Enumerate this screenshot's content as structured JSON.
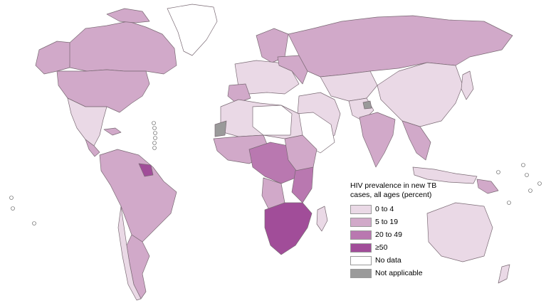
{
  "legend": {
    "title": "HIV prevalence in new TB cases, all ages (percent)",
    "items": [
      {
        "label": "0 to 4",
        "color": "#ead9e6"
      },
      {
        "label": "5 to 19",
        "color": "#d1a9c9"
      },
      {
        "label": "20 to 49",
        "color": "#b978b0"
      },
      {
        "label": "≥50",
        "color": "#a14d99"
      },
      {
        "label": "No data",
        "color": "#ffffff"
      },
      {
        "label": "Not applicable",
        "color": "#9a9a9a"
      }
    ]
  }
}
